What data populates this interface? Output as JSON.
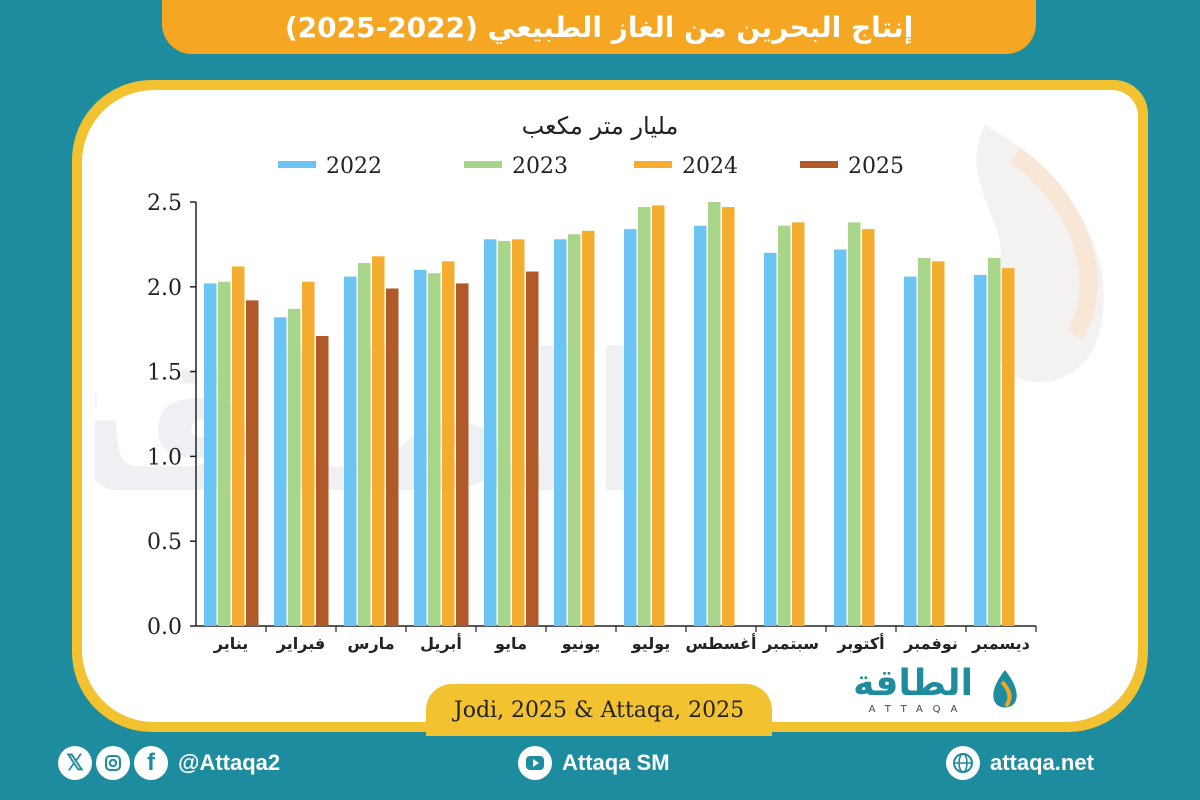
{
  "header": {
    "title": "إنتاج البحرين من الغاز الطبيعي (2022-2025)"
  },
  "source": "Jodi, 2025 & Attaqa, 2025",
  "logo": {
    "text": "الطاقة",
    "sub": "ATTAQA"
  },
  "watermark": "الطاقة",
  "footer": {
    "social_handle": "@Attaqa2",
    "youtube": "Attaqa SM",
    "website": "attaqa.net",
    "icons": [
      "x-icon",
      "instagram-icon",
      "facebook-icon",
      "youtube-icon",
      "globe-icon"
    ]
  },
  "colors": {
    "background": "#1d8c9e",
    "frame": "#f2c230",
    "title_bar": "#f5a623",
    "s2022": "#6cc4f2",
    "s2023": "#a8d58a",
    "s2024": "#f5ad2f",
    "s2025": "#b05a2a"
  },
  "chart_data": {
    "type": "bar",
    "title": "مليار متر مكعب",
    "categories": [
      "يناير",
      "فبراير",
      "مارس",
      "أبريل",
      "مايو",
      "يونيو",
      "يوليو",
      "أغسطس",
      "سبتمبر",
      "أكتوبر",
      "نوفمبر",
      "ديسمبر"
    ],
    "series": [
      {
        "name": "2022",
        "color": "#6cc4f2",
        "values": [
          2.02,
          1.82,
          2.06,
          2.1,
          2.28,
          2.28,
          2.34,
          2.36,
          2.2,
          2.22,
          2.06,
          2.07
        ]
      },
      {
        "name": "2023",
        "color": "#a8d58a",
        "values": [
          2.03,
          1.87,
          2.14,
          2.08,
          2.27,
          2.31,
          2.47,
          2.5,
          2.36,
          2.38,
          2.17,
          2.17
        ]
      },
      {
        "name": "2024",
        "color": "#f5ad2f",
        "values": [
          2.12,
          2.03,
          2.18,
          2.15,
          2.28,
          2.33,
          2.48,
          2.47,
          2.38,
          2.34,
          2.15,
          2.11
        ]
      },
      {
        "name": "2025",
        "color": "#b05a2a",
        "values": [
          1.92,
          1.71,
          1.99,
          2.02,
          2.09,
          null,
          null,
          null,
          null,
          null,
          null,
          null
        ]
      }
    ],
    "ylim": [
      0,
      2.5
    ],
    "yticks": [
      "0.0",
      "0.5",
      "1.0",
      "1.5",
      "2.0",
      "2.5"
    ],
    "legend": "top",
    "grid": false
  }
}
